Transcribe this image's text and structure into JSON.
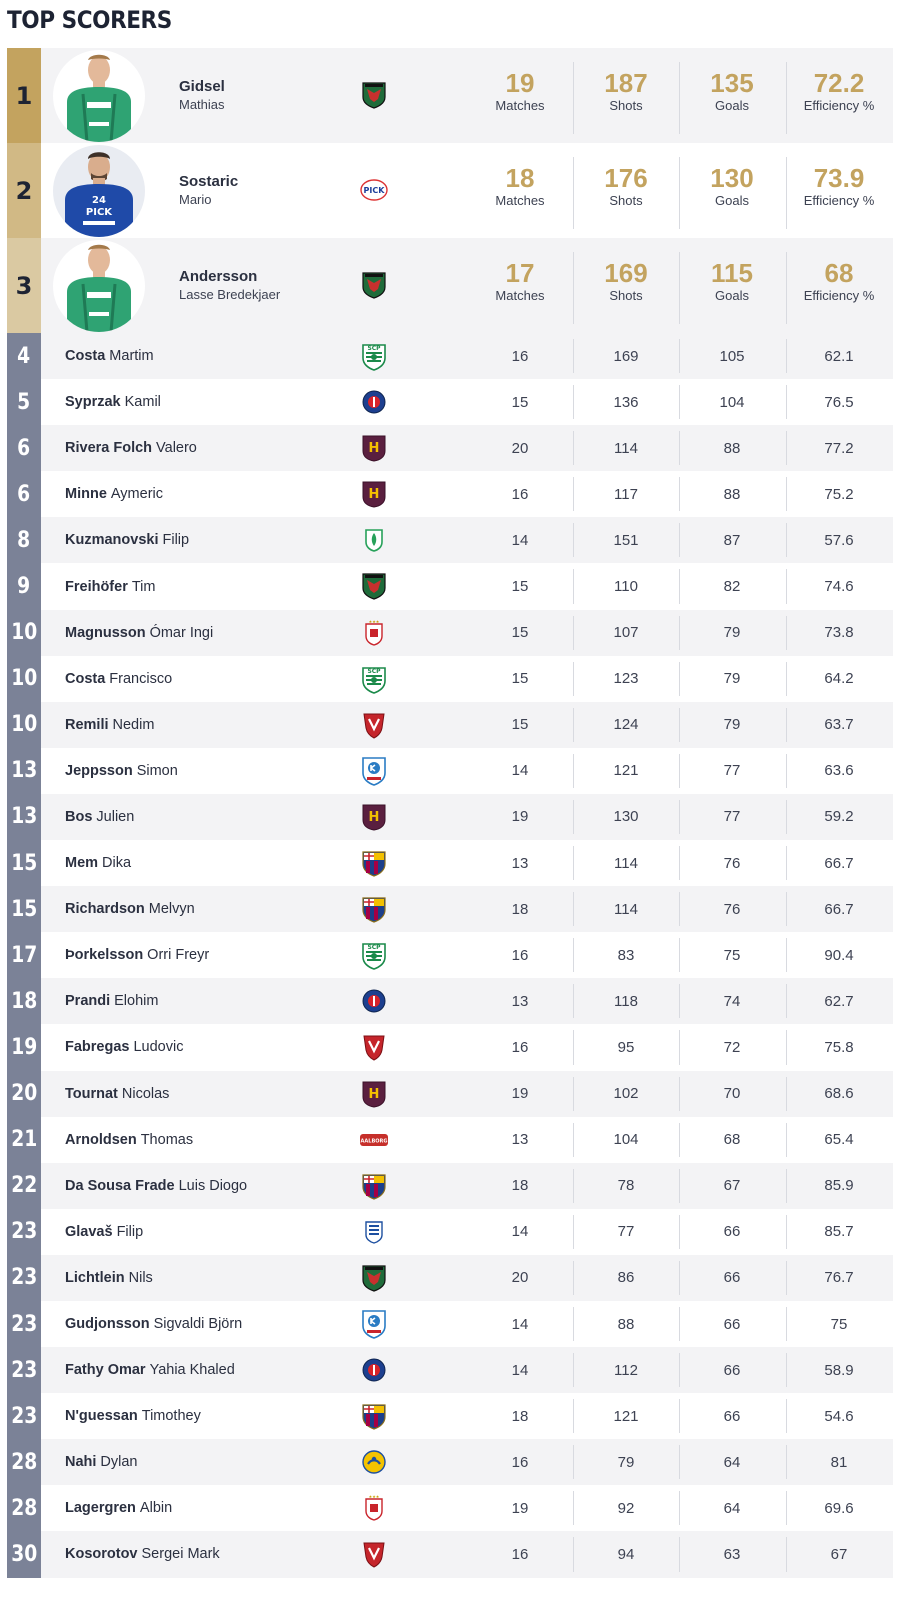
{
  "title": "TOP SCORERS",
  "labels": {
    "matches": "Matches",
    "shots": "Shots",
    "goals": "Goals",
    "efficiency": "Efficiency %"
  },
  "colors": {
    "gold": "#c3a35f",
    "rank_gray": "#7b8297",
    "text_dark": "#2b3040"
  },
  "top": [
    {
      "rank": "1",
      "last": "Gidsel",
      "first": "Mathias",
      "club_icon": "fuchse-berlin-crest-icon",
      "matches": "19",
      "shots": "187",
      "goals": "135",
      "efficiency": "72.2"
    },
    {
      "rank": "2",
      "last": "Sostaric",
      "first": "Mario",
      "club_icon": "pick-szeged-crest-icon",
      "matches": "18",
      "shots": "176",
      "goals": "130",
      "efficiency": "73.9"
    },
    {
      "rank": "3",
      "last": "Andersson",
      "first": "Lasse Bredekjaer",
      "club_icon": "fuchse-berlin-crest-icon",
      "matches": "17",
      "shots": "169",
      "goals": "115",
      "efficiency": "68"
    }
  ],
  "rows": [
    {
      "rank": "4",
      "last": "Costa",
      "first": "Martim",
      "club_icon": "sporting-crest-icon",
      "matches": "16",
      "shots": "169",
      "goals": "105",
      "efficiency": "62.1"
    },
    {
      "rank": "5",
      "last": "Syprzak",
      "first": "Kamil",
      "club_icon": "psg-crest-icon",
      "matches": "15",
      "shots": "136",
      "goals": "104",
      "efficiency": "76.5"
    },
    {
      "rank": "6",
      "last": "Rivera Folch",
      "first": "Valero",
      "club_icon": "hbc-nantes-crest-icon",
      "matches": "20",
      "shots": "114",
      "goals": "88",
      "efficiency": "77.2"
    },
    {
      "rank": "6",
      "last": "Minne",
      "first": "Aymeric",
      "club_icon": "hbc-nantes-crest-icon",
      "matches": "16",
      "shots": "117",
      "goals": "88",
      "efficiency": "75.2"
    },
    {
      "rank": "8",
      "last": "Kuzmanovski",
      "first": "Filip",
      "club_icon": "eurofarm-pelister-crest-icon",
      "matches": "14",
      "shots": "151",
      "goals": "87",
      "efficiency": "57.6"
    },
    {
      "rank": "9",
      "last": "Freihöfer",
      "first": "Tim",
      "club_icon": "fuchse-berlin-crest-icon",
      "matches": "15",
      "shots": "110",
      "goals": "82",
      "efficiency": "74.6"
    },
    {
      "rank": "10",
      "last": "Magnusson",
      "first": "Ómar Ingi",
      "club_icon": "sc-magdeburg-crest-icon",
      "matches": "15",
      "shots": "107",
      "goals": "79",
      "efficiency": "73.8"
    },
    {
      "rank": "10",
      "last": "Costa",
      "first": "Francisco",
      "club_icon": "sporting-crest-icon",
      "matches": "15",
      "shots": "123",
      "goals": "79",
      "efficiency": "64.2"
    },
    {
      "rank": "10",
      "last": "Remili",
      "first": "Nedim",
      "club_icon": "veszprem-crest-icon",
      "matches": "15",
      "shots": "124",
      "goals": "79",
      "efficiency": "63.7"
    },
    {
      "rank": "13",
      "last": "Jeppsson",
      "first": "Simon",
      "club_icon": "kolstad-crest-icon",
      "matches": "14",
      "shots": "121",
      "goals": "77",
      "efficiency": "63.6"
    },
    {
      "rank": "13",
      "last": "Bos",
      "first": "Julien",
      "club_icon": "hbc-nantes-crest-icon",
      "matches": "19",
      "shots": "130",
      "goals": "77",
      "efficiency": "59.2"
    },
    {
      "rank": "15",
      "last": "Mem",
      "first": "Dika",
      "club_icon": "fc-barcelona-crest-icon",
      "matches": "13",
      "shots": "114",
      "goals": "76",
      "efficiency": "66.7"
    },
    {
      "rank": "15",
      "last": "Richardson",
      "first": "Melvyn",
      "club_icon": "fc-barcelona-crest-icon",
      "matches": "18",
      "shots": "114",
      "goals": "76",
      "efficiency": "66.7"
    },
    {
      "rank": "17",
      "last": "Þorkelsson",
      "first": "Orri Freyr",
      "club_icon": "sporting-crest-icon",
      "matches": "16",
      "shots": "83",
      "goals": "75",
      "efficiency": "90.4"
    },
    {
      "rank": "18",
      "last": "Prandi",
      "first": "Elohim",
      "club_icon": "psg-crest-icon",
      "matches": "13",
      "shots": "118",
      "goals": "74",
      "efficiency": "62.7"
    },
    {
      "rank": "19",
      "last": "Fabregas",
      "first": "Ludovic",
      "club_icon": "veszprem-crest-icon",
      "matches": "16",
      "shots": "95",
      "goals": "72",
      "efficiency": "75.8"
    },
    {
      "rank": "20",
      "last": "Tournat",
      "first": "Nicolas",
      "club_icon": "hbc-nantes-crest-icon",
      "matches": "19",
      "shots": "102",
      "goals": "70",
      "efficiency": "68.6"
    },
    {
      "rank": "21",
      "last": "Arnoldsen",
      "first": "Thomas",
      "club_icon": "aalborg-crest-icon",
      "matches": "13",
      "shots": "104",
      "goals": "68",
      "efficiency": "65.4"
    },
    {
      "rank": "22",
      "last": "Da Sousa Frade",
      "first": "Luis Diogo",
      "club_icon": "fc-barcelona-crest-icon",
      "matches": "18",
      "shots": "78",
      "goals": "67",
      "efficiency": "85.9"
    },
    {
      "rank": "23",
      "last": "Glavaš",
      "first": "Filip",
      "club_icon": "rk-zagreb-crest-icon",
      "matches": "14",
      "shots": "77",
      "goals": "66",
      "efficiency": "85.7"
    },
    {
      "rank": "23",
      "last": "Lichtlein",
      "first": "Nils",
      "club_icon": "fuchse-berlin-crest-icon",
      "matches": "20",
      "shots": "86",
      "goals": "66",
      "efficiency": "76.7"
    },
    {
      "rank": "23",
      "last": "Gudjonsson",
      "first": "Sigvaldi Björn",
      "club_icon": "kolstad-crest-icon",
      "matches": "14",
      "shots": "88",
      "goals": "66",
      "efficiency": "75"
    },
    {
      "rank": "23",
      "last": "Fathy Omar",
      "first": "Yahia Khaled",
      "club_icon": "psg-crest-icon",
      "matches": "14",
      "shots": "112",
      "goals": "66",
      "efficiency": "58.9"
    },
    {
      "rank": "23",
      "last": "N'guessan",
      "first": "Timothey",
      "club_icon": "fc-barcelona-crest-icon",
      "matches": "18",
      "shots": "121",
      "goals": "66",
      "efficiency": "54.6"
    },
    {
      "rank": "28",
      "last": "Nahi",
      "first": "Dylan",
      "club_icon": "industria-kielce-crest-icon",
      "matches": "16",
      "shots": "79",
      "goals": "64",
      "efficiency": "81"
    },
    {
      "rank": "28",
      "last": "Lagergren",
      "first": "Albin",
      "club_icon": "sc-magdeburg-crest-icon",
      "matches": "19",
      "shots": "92",
      "goals": "64",
      "efficiency": "69.6"
    },
    {
      "rank": "30",
      "last": "Kosorotov",
      "first": "Sergei Mark",
      "club_icon": "veszprem-crest-icon",
      "matches": "16",
      "shots": "94",
      "goals": "63",
      "efficiency": "67"
    }
  ]
}
